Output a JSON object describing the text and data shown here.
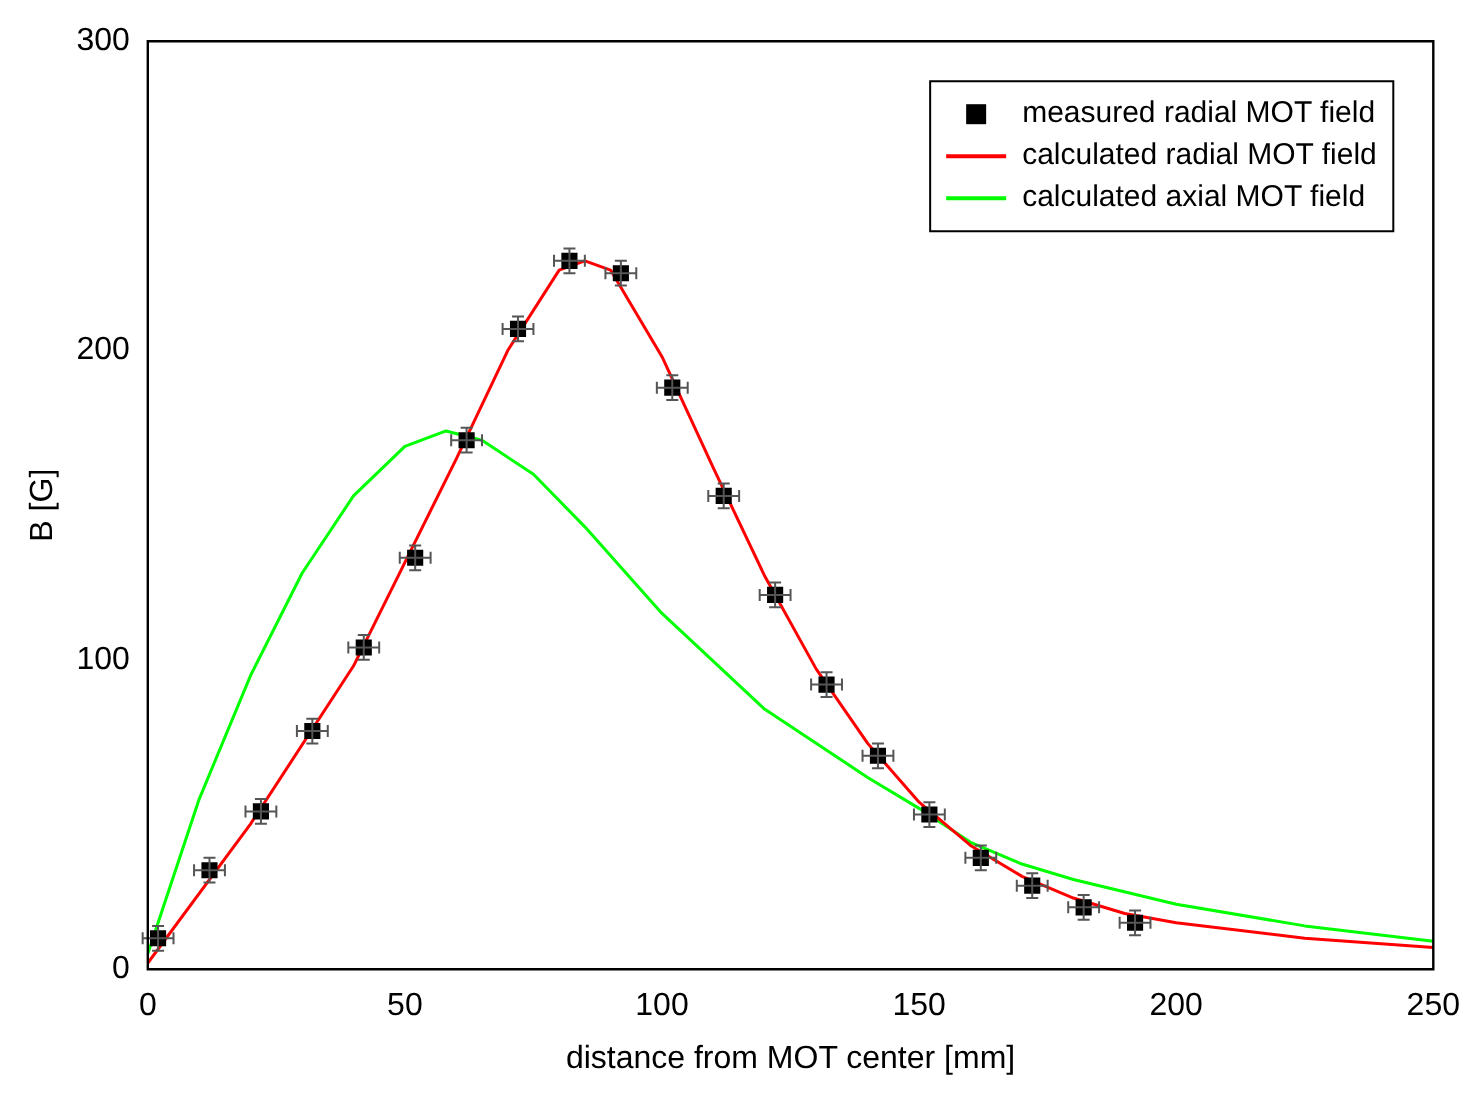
{
  "chart_data": {
    "type": "scatter",
    "xlabel": "distance from MOT center [mm]",
    "ylabel": "B [G]",
    "xlim": [
      0,
      250
    ],
    "xticks": [
      0,
      50,
      100,
      150,
      200,
      250
    ],
    "ylim": [
      0,
      300
    ],
    "yticks": [
      0,
      100,
      200,
      300
    ],
    "grid": false,
    "legend": "top right",
    "series": [
      {
        "name": "measured radial MOT field",
        "marker": "square",
        "color": "#000000",
        "x": [
          2,
          12,
          22,
          32,
          42,
          52,
          62,
          72,
          82,
          92,
          102,
          112,
          122,
          132,
          142,
          152,
          162,
          172,
          182,
          192
        ],
        "values": [
          10,
          32,
          51,
          77,
          104,
          133,
          171,
          207,
          229,
          225,
          188,
          153,
          121,
          92,
          69,
          50,
          36,
          27,
          20,
          15
        ],
        "errors": [
          4,
          4,
          4,
          4,
          4,
          4,
          4,
          4,
          4,
          4,
          4,
          4,
          4,
          4,
          4,
          4,
          4,
          4,
          4,
          4
        ],
        "xerrors": [
          3,
          3,
          3,
          3,
          3,
          3,
          3,
          3,
          3,
          3,
          3,
          3,
          3,
          3,
          3,
          3,
          3,
          3,
          3,
          3
        ]
      },
      {
        "name": "calculated radial MOT field",
        "type": "line",
        "marker": "none",
        "color": "#ff0000",
        "x": [
          0,
          20,
          40,
          60,
          70,
          80,
          85,
          90,
          100,
          110,
          120,
          130,
          140,
          150,
          160,
          170,
          180,
          190,
          200,
          225,
          250
        ],
        "values": [
          2,
          47,
          98,
          165,
          200,
          226,
          229,
          226,
          198,
          162,
          127,
          97,
          73,
          54,
          40,
          30,
          23,
          18,
          15,
          10,
          7
        ]
      },
      {
        "name": "calculated axial MOT field",
        "type": "line",
        "marker": "none",
        "color": "#00ff00",
        "x": [
          0,
          10,
          20,
          30,
          40,
          50,
          58,
          65,
          75,
          85,
          100,
          120,
          140,
          150,
          160,
          170,
          180,
          200,
          225,
          250
        ],
        "values": [
          5,
          55,
          95,
          128,
          153,
          169,
          174,
          171,
          160,
          143,
          115,
          84,
          62,
          52,
          41,
          34,
          29,
          21,
          14,
          9
        ]
      }
    ]
  }
}
